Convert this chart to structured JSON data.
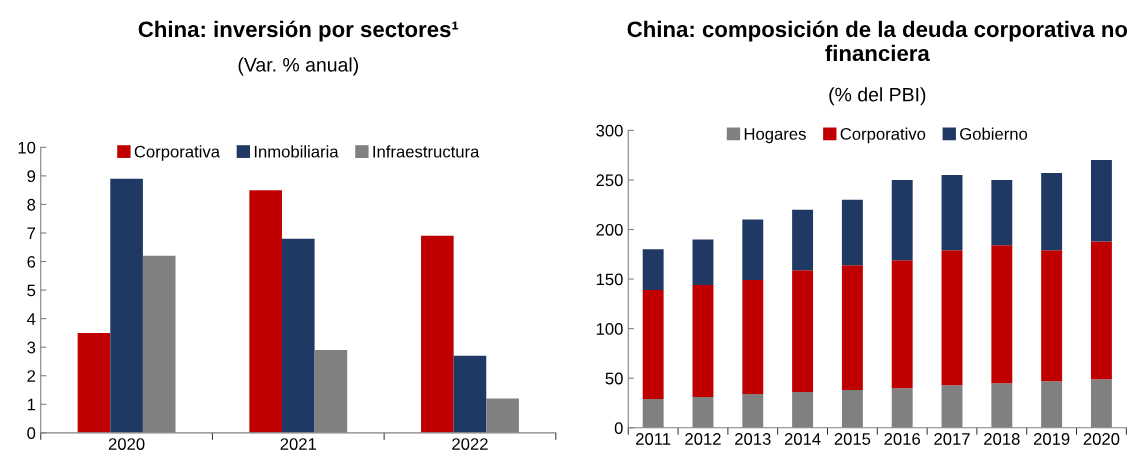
{
  "chart_data": [
    {
      "type": "bar",
      "title": "China: inversión por sectores¹",
      "subtitle": "(Var. % anual)",
      "categories": [
        "2020",
        "2021",
        "2022"
      ],
      "series": [
        {
          "name": "Corporativa",
          "color": "#c00000",
          "values": [
            3.5,
            8.5,
            6.9
          ]
        },
        {
          "name": "Inmobiliaria",
          "color": "#1f3864",
          "values": [
            8.9,
            6.8,
            2.7
          ]
        },
        {
          "name": "Infraestructura",
          "color": "#808080",
          "values": [
            6.2,
            2.9,
            1.2
          ]
        }
      ],
      "ylim": [
        0,
        10
      ],
      "yticks": [
        0,
        1,
        2,
        3,
        4,
        5,
        6,
        7,
        8,
        9,
        10
      ],
      "legend": "top",
      "grid": false
    },
    {
      "type": "bar",
      "stacked": true,
      "title": "China: composición de la deuda corporativa no financiera",
      "subtitle": "(% del PBI)",
      "categories": [
        "2011",
        "2012",
        "2013",
        "2014",
        "2015",
        "2016",
        "2017",
        "2018",
        "2019",
        "2020"
      ],
      "series": [
        {
          "name": "Hogares",
          "color": "#808080",
          "values": [
            29,
            31,
            34,
            36,
            38,
            40,
            43,
            45,
            47,
            49
          ]
        },
        {
          "name": "Corporativo",
          "color": "#c00000",
          "values": [
            110,
            113,
            115,
            123,
            126,
            129,
            136,
            139,
            132,
            139
          ]
        },
        {
          "name": "Gobierno",
          "color": "#1f3864",
          "values": [
            41,
            46,
            61,
            61,
            66,
            81,
            76,
            66,
            78,
            82
          ]
        }
      ],
      "ylim": [
        0,
        300
      ],
      "yticks": [
        0,
        50,
        100,
        150,
        200,
        250,
        300
      ],
      "legend": "top",
      "grid": false
    }
  ]
}
